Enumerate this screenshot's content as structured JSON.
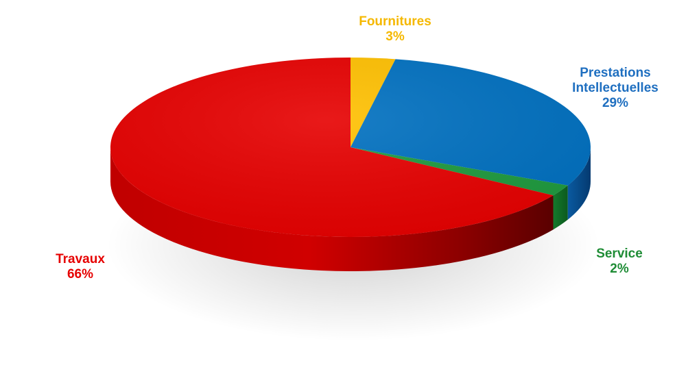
{
  "chart_data": {
    "type": "pie",
    "title": "",
    "slices": [
      {
        "label": "Fournitures",
        "value": 3,
        "value_label": "3%",
        "color": "#FFC000"
      },
      {
        "label": "Prestations Intellectuelles",
        "value": 29,
        "value_label": "29%",
        "color": "#0070C0"
      },
      {
        "label": "Service",
        "value": 2,
        "value_label": "2%",
        "color": "#1E9A3E"
      },
      {
        "label": "Travaux",
        "value": 66,
        "value_label": "66%",
        "color": "#E60000"
      }
    ],
    "style": "3d",
    "legend": "none",
    "labels": [
      {
        "lines": [
          "Fournitures",
          "3%"
        ],
        "color": "#F5B800"
      },
      {
        "lines": [
          "Prestations",
          "Intellectuelles",
          "29%"
        ],
        "color": "#1F6FC0"
      },
      {
        "lines": [
          "Service",
          "2%"
        ],
        "color": "#1E8C35"
      },
      {
        "lines": [
          "Travaux",
          "66%"
        ],
        "color": "#E60000"
      }
    ]
  }
}
